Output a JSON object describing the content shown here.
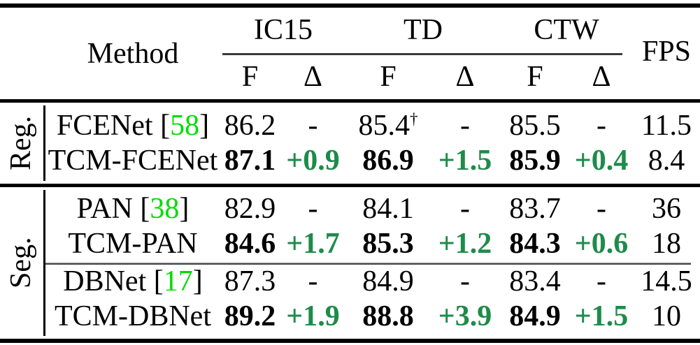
{
  "header": {
    "method": "Method",
    "fps": "FPS",
    "datasets": {
      "ic15": "IC15",
      "td": "TD",
      "ctw": "CTW"
    },
    "sub": {
      "f": "F",
      "delta": "Δ"
    }
  },
  "groups": [
    {
      "label": "Reg."
    },
    {
      "label": "Seg."
    }
  ],
  "rows": [
    {
      "method": "FCENet",
      "cite_open": " [",
      "cite": "58",
      "cite_close": "]",
      "f1": "86.2",
      "d1": "-",
      "f2": "85.4",
      "f2_sup": "†",
      "d2": "-",
      "f3": "85.5",
      "d3": "-",
      "fps": "11.5"
    },
    {
      "method": "TCM-FCENet",
      "f1": "87.1",
      "d1": "+0.9",
      "f2": "86.9",
      "d2": "+1.5",
      "f3": "85.9",
      "d3": "+0.4",
      "fps": "8.4"
    },
    {
      "method": "PAN",
      "cite_open": " [",
      "cite": "38",
      "cite_close": "]",
      "f1": "82.9",
      "d1": "-",
      "f2": "84.1",
      "d2": "-",
      "f3": "83.7",
      "d3": "-",
      "fps": "36"
    },
    {
      "method": "TCM-PAN",
      "f1": "84.6",
      "d1": "+1.7",
      "f2": "85.3",
      "d2": "+1.2",
      "f3": "84.3",
      "d3": "+0.6",
      "fps": "18"
    },
    {
      "method": "DBNet",
      "cite_open": " [",
      "cite": "17",
      "cite_close": "]",
      "f1": "87.3",
      "d1": "-",
      "f2": "84.9",
      "d2": "-",
      "f3": "83.4",
      "d3": "-",
      "fps": "14.5"
    },
    {
      "method": "TCM-DBNet",
      "f1": "89.2",
      "d1": "+1.9",
      "f2": "88.8",
      "d2": "+3.9",
      "f3": "84.9",
      "d3": "+1.5",
      "fps": "10"
    }
  ],
  "colors": {
    "citation_green": "#00DC00",
    "delta_green": "#1E8B4A",
    "text": "#000000",
    "background": "#FFFFFF"
  }
}
